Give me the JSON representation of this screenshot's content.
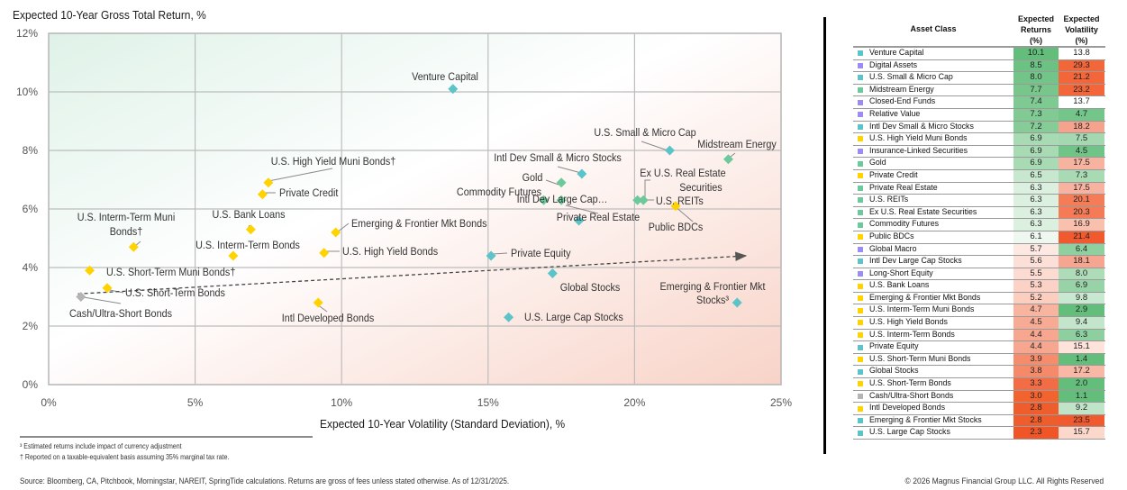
{
  "chart_data": {
    "type": "scatter",
    "title": "Expected 10-Year Gross Total Return, %",
    "xlabel": "Expected 10-Year Volatility (Standard Deviation), %",
    "ylabel": "Expected 10-Year Gross Total Return, %",
    "xlim": [
      0,
      25
    ],
    "ylim": [
      0,
      12
    ],
    "x_ticks": [
      0,
      5,
      10,
      15,
      20,
      25
    ],
    "y_ticks": [
      0,
      2,
      4,
      6,
      8,
      10,
      12
    ],
    "x_tick_labels": [
      "0%",
      "5%",
      "10%",
      "15%",
      "20%",
      "25%"
    ],
    "y_tick_labels": [
      "0%",
      "2%",
      "4%",
      "6%",
      "8%",
      "10%",
      "12%"
    ],
    "grid": true,
    "trend_arrow": {
      "from": [
        1.0,
        3.1
      ],
      "to": [
        23.8,
        4.4
      ],
      "style": "dashed"
    },
    "category_colors": {
      "equity": "#5cc4c9",
      "real_assets": "#6cc99b",
      "fixed_income": "#ffd200",
      "hedge": "#9a8cf0",
      "cash": "#b4b4b4"
    },
    "points": [
      {
        "label": "Venture Capital",
        "x": 13.8,
        "y": 10.1,
        "group": "equity"
      },
      {
        "label": "U.S. Small & Micro Cap",
        "x": 21.2,
        "y": 8.0,
        "group": "equity"
      },
      {
        "label": "Midstream Energy",
        "x": 23.2,
        "y": 7.7,
        "group": "real_assets"
      },
      {
        "label": "Intl Dev Small & Micro Stocks",
        "x": 18.2,
        "y": 7.2,
        "group": "equity"
      },
      {
        "label": "U.S. High Yield Muni Bonds†",
        "x": 7.5,
        "y": 6.9,
        "group": "fixed_income"
      },
      {
        "label": "Gold",
        "x": 17.5,
        "y": 6.9,
        "group": "real_assets"
      },
      {
        "label": "Private Credit",
        "x": 7.3,
        "y": 6.5,
        "group": "fixed_income"
      },
      {
        "label": "Private Real Estate",
        "x": 17.5,
        "y": 6.3,
        "group": "real_assets"
      },
      {
        "label": "U.S. REITs",
        "x": 20.1,
        "y": 6.3,
        "group": "real_assets"
      },
      {
        "label": "Ex U.S. Real Estate Securities",
        "x": 20.3,
        "y": 6.3,
        "group": "real_assets"
      },
      {
        "label": "Commodity Futures",
        "x": 16.9,
        "y": 6.3,
        "group": "real_assets"
      },
      {
        "label": "Public BDCs",
        "x": 21.4,
        "y": 6.1,
        "group": "fixed_income"
      },
      {
        "label": "Intl Dev Large Cap Stocks",
        "x": 18.1,
        "y": 5.6,
        "group": "equity"
      },
      {
        "label": "U.S. Bank Loans",
        "x": 6.9,
        "y": 5.3,
        "group": "fixed_income"
      },
      {
        "label": "Emerging & Frontier Mkt Bonds",
        "x": 9.8,
        "y": 5.2,
        "group": "fixed_income"
      },
      {
        "label": "U.S. Interm-Term Muni Bonds†",
        "x": 2.9,
        "y": 4.7,
        "group": "fixed_income"
      },
      {
        "label": "U.S. High Yield Bonds",
        "x": 9.4,
        "y": 4.5,
        "group": "fixed_income"
      },
      {
        "label": "U.S. Interm-Term Bonds",
        "x": 6.3,
        "y": 4.4,
        "group": "fixed_income"
      },
      {
        "label": "Private Equity",
        "x": 15.1,
        "y": 4.4,
        "group": "equity"
      },
      {
        "label": "U.S. Short-Term Muni Bonds†",
        "x": 1.4,
        "y": 3.9,
        "group": "fixed_income"
      },
      {
        "label": "Global Stocks",
        "x": 17.2,
        "y": 3.8,
        "group": "equity"
      },
      {
        "label": "U.S. Short-Term Bonds",
        "x": 2.0,
        "y": 3.3,
        "group": "fixed_income"
      },
      {
        "label": "Cash/Ultra-Short Bonds",
        "x": 1.1,
        "y": 3.0,
        "group": "cash"
      },
      {
        "label": "Intl Developed Bonds",
        "x": 9.2,
        "y": 2.8,
        "group": "fixed_income"
      },
      {
        "label": "Emerging & Frontier Mkt Stocks³",
        "x": 23.5,
        "y": 2.8,
        "group": "equity"
      },
      {
        "label": "U.S. Large Cap Stocks",
        "x": 15.7,
        "y": 2.3,
        "group": "equity"
      }
    ],
    "point_labels_displayed": [
      "Venture Capital",
      "U.S. Small & Micro Cap",
      "Midstream Energy",
      "Intl Dev Small & Micro Stocks",
      "U.S. High Yield Muni Bonds†",
      "Gold",
      "Private Credit",
      "Private Real Estate",
      "U.S. REITs",
      "Ex U.S. Real Estate",
      "Securities",
      "Commodity Futures",
      "Public BDCs",
      "Intl Dev Large Cap…",
      "U.S. Bank Loans",
      "Emerging & Frontier Mkt Bonds",
      "U.S. Interm-Term Muni",
      "Bonds†",
      "U.S. High Yield Bonds",
      "U.S. Interm-Term Bonds",
      "Private Equity",
      "U.S. Short-Term Muni Bonds†",
      "Global Stocks",
      "U.S. Short-Term Bonds",
      "Cash/Ultra-Short Bonds",
      "Intl Developed Bonds",
      "Emerging & Frontier Mkt",
      "Stocks³",
      "U.S. Large Cap Stocks"
    ]
  },
  "table": {
    "headers": {
      "asset": "Asset Class",
      "ret": [
        "Expected",
        "Returns",
        "(%)"
      ],
      "vol": [
        "Expected",
        "Volatility",
        "(%)"
      ]
    },
    "rows": [
      {
        "name": "Venture Capital",
        "group": "equity",
        "ret": "10.1",
        "vol": "13.8",
        "ret_color": "#63be7b",
        "vol_color": "#ffffff"
      },
      {
        "name": "Digital Assets",
        "group": "hedge",
        "ret": "8.5",
        "vol": "29.3",
        "ret_color": "#6cc282",
        "vol_color": "#f2663a"
      },
      {
        "name": "U.S. Small & Micro Cap",
        "group": "equity",
        "ret": "8.0",
        "vol": "21.2",
        "ret_color": "#73c488",
        "vol_color": "#f2663a"
      },
      {
        "name": "Midstream Energy",
        "group": "real_assets",
        "ret": "7.7",
        "vol": "23.2",
        "ret_color": "#78c68c",
        "vol_color": "#f2663a"
      },
      {
        "name": "Closed-End Funds",
        "group": "hedge",
        "ret": "7.4",
        "vol": "13.7",
        "ret_color": "#7fc992",
        "vol_color": "#ffffff"
      },
      {
        "name": "Relative Value",
        "group": "hedge",
        "ret": "7.3",
        "vol": "4.7",
        "ret_color": "#82ca94",
        "vol_color": "#74c58a"
      },
      {
        "name": "Intl Dev Small & Micro Stocks",
        "group": "equity",
        "ret": "7.2",
        "vol": "18.2",
        "ret_color": "#86cc97",
        "vol_color": "#f6a38e"
      },
      {
        "name": "U.S. High Yield Muni Bonds",
        "group": "fixed_income",
        "ret": "6.9",
        "vol": "7.5",
        "ret_color": "#a8dab4",
        "vol_color": "#a4d8b0"
      },
      {
        "name": "Insurance-Linked Securities",
        "group": "hedge",
        "ret": "6.9",
        "vol": "4.5",
        "ret_color": "#a8dab4",
        "vol_color": "#70c487"
      },
      {
        "name": "Gold",
        "group": "real_assets",
        "ret": "6.9",
        "vol": "17.5",
        "ret_color": "#a8dab4",
        "vol_color": "#f8b3a0"
      },
      {
        "name": "Private Credit",
        "group": "fixed_income",
        "ret": "6.5",
        "vol": "7.3",
        "ret_color": "#c7e7cf",
        "vol_color": "#a8dab4"
      },
      {
        "name": "Private Real Estate",
        "group": "real_assets",
        "ret": "6.3",
        "vol": "17.5",
        "ret_color": "#dcf0e0",
        "vol_color": "#f8b3a0"
      },
      {
        "name": "U.S. REITs",
        "group": "real_assets",
        "ret": "6.3",
        "vol": "20.1",
        "ret_color": "#dcf0e0",
        "vol_color": "#f47d57"
      },
      {
        "name": "Ex U.S. Real Estate Securities",
        "group": "real_assets",
        "ret": "6.3",
        "vol": "20.3",
        "ret_color": "#dcf0e0",
        "vol_color": "#f47b55"
      },
      {
        "name": "Commodity Futures",
        "group": "real_assets",
        "ret": "6.3",
        "vol": "16.9",
        "ret_color": "#dcf0e0",
        "vol_color": "#f9c0ae"
      },
      {
        "name": "Public BDCs",
        "group": "fixed_income",
        "ret": "6.1",
        "vol": "21.4",
        "ret_color": "#eef8f0",
        "vol_color": "#f05a2e"
      },
      {
        "name": "Global Macro",
        "group": "hedge",
        "ret": "5.7",
        "vol": "6.4",
        "ret_color": "#fde8e2",
        "vol_color": "#8fd09f"
      },
      {
        "name": "Intl Dev Large Cap Stocks",
        "group": "equity",
        "ret": "5.6",
        "vol": "18.1",
        "ret_color": "#fce0d7",
        "vol_color": "#f6a590"
      },
      {
        "name": "Long-Short Equity",
        "group": "hedge",
        "ret": "5.5",
        "vol": "8.0",
        "ret_color": "#fcdcd2",
        "vol_color": "#aedcb9"
      },
      {
        "name": "U.S. Bank Loans",
        "group": "fixed_income",
        "ret": "5.3",
        "vol": "6.9",
        "ret_color": "#fbd2c5",
        "vol_color": "#98d3a7"
      },
      {
        "name": "Emerging & Frontier Mkt Bonds",
        "group": "fixed_income",
        "ret": "5.2",
        "vol": "9.8",
        "ret_color": "#fbcebf",
        "vol_color": "#c9e8d1"
      },
      {
        "name": "U.S. Interm-Term Muni Bonds",
        "group": "fixed_income",
        "ret": "4.7",
        "vol": "2.9",
        "ret_color": "#f8b49f",
        "vol_color": "#63be7b"
      },
      {
        "name": "U.S. High Yield Bonds",
        "group": "fixed_income",
        "ret": "4.5",
        "vol": "9.4",
        "ret_color": "#f7ab94",
        "vol_color": "#c3e5cb"
      },
      {
        "name": "U.S. Interm-Term Bonds",
        "group": "fixed_income",
        "ret": "4.4",
        "vol": "6.3",
        "ret_color": "#f7a78f",
        "vol_color": "#8dcf9e"
      },
      {
        "name": "Private Equity",
        "group": "equity",
        "ret": "4.4",
        "vol": "15.1",
        "ret_color": "#f7a78f",
        "vol_color": "#fde3da"
      },
      {
        "name": "U.S. Short-Term Muni Bonds",
        "group": "fixed_income",
        "ret": "3.9",
        "vol": "1.4",
        "ret_color": "#f58d6d",
        "vol_color": "#63be7b"
      },
      {
        "name": "Global Stocks",
        "group": "equity",
        "ret": "3.8",
        "vol": "17.2",
        "ret_color": "#f58a6a",
        "vol_color": "#f9b8a5"
      },
      {
        "name": "U.S. Short-Term Bonds",
        "group": "fixed_income",
        "ret": "3.3",
        "vol": "2.0",
        "ret_color": "#f26d45",
        "vol_color": "#63be7b"
      },
      {
        "name": "Cash/Ultra-Short Bonds",
        "group": "cash",
        "ret": "3.0",
        "vol": "1.1",
        "ret_color": "#f1632f",
        "vol_color": "#63be7b"
      },
      {
        "name": "Intl Developed Bonds",
        "group": "fixed_income",
        "ret": "2.8",
        "vol": "9.2",
        "ret_color": "#f05d2c",
        "vol_color": "#c0e4c8"
      },
      {
        "name": "Emerging & Frontier Mkt Stocks",
        "group": "equity",
        "ret": "2.8",
        "vol": "23.5",
        "ret_color": "#f05d2c",
        "vol_color": "#f05a2e"
      },
      {
        "name": "U.S. Large Cap Stocks",
        "group": "equity",
        "ret": "2.3",
        "vol": "15.7",
        "ret_color": "#ef5527",
        "vol_color": "#fcd8cc"
      }
    ]
  },
  "footnotes": {
    "note3": "³ Estimated returns include impact of currency adjustment",
    "dagger": "† Reported on a taxable-equivalent basis assuming 35% marginal tax rate.",
    "source": "Source: Bloomberg, CA, Pitchbook, Morningstar, NAREIT, SpringTide calculations. Returns are gross of fees unless stated otherwise. As of 12/31/2025.",
    "copyright": "© 2026 Magnus Financial Group LLC. All Rights Reserved"
  }
}
